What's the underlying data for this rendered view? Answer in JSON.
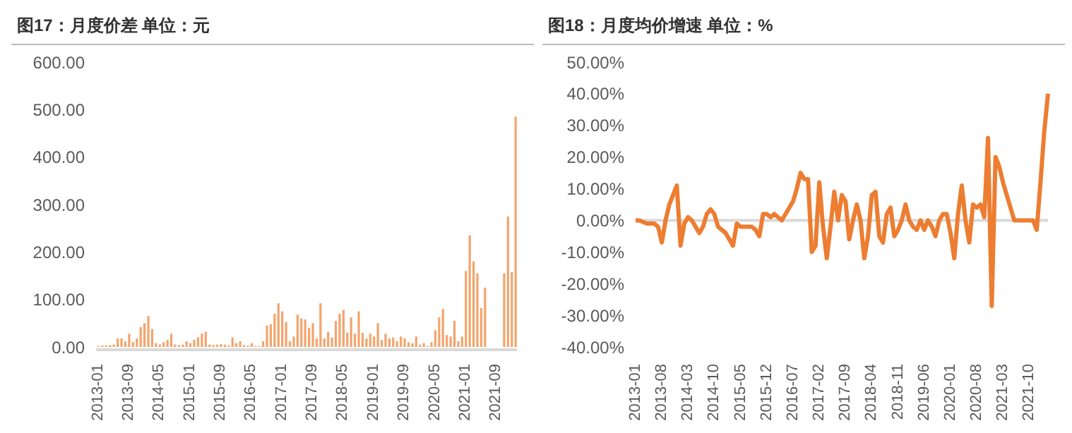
{
  "chart_data": [
    {
      "type": "bar",
      "title": "图17：月度价差 单位：元",
      "categories": [
        "2013-01",
        null,
        null,
        null,
        null,
        null,
        null,
        null,
        "2013-09",
        null,
        null,
        null,
        null,
        null,
        null,
        null,
        "2014-05",
        null,
        null,
        null,
        null,
        null,
        null,
        null,
        "2015-01",
        null,
        null,
        null,
        null,
        null,
        null,
        null,
        "2015-09",
        null,
        null,
        null,
        null,
        null,
        null,
        null,
        "2016-05",
        null,
        null,
        null,
        null,
        null,
        null,
        null,
        "2017-01",
        null,
        null,
        null,
        null,
        null,
        null,
        null,
        "2017-09",
        null,
        null,
        null,
        null,
        null,
        null,
        null,
        "2018-05",
        null,
        null,
        null,
        null,
        null,
        null,
        null,
        "2019-01",
        null,
        null,
        null,
        null,
        null,
        null,
        null,
        "2019-09",
        null,
        null,
        null,
        null,
        null,
        null,
        null,
        "2020-05",
        null,
        null,
        null,
        null,
        null,
        null,
        null,
        "2021-01",
        null,
        null,
        null,
        null,
        null,
        null,
        null,
        "2021-09",
        null,
        null,
        null,
        null,
        null
      ],
      "series": [
        {
          "color": "#f4a46c",
          "values": [
            2,
            3,
            3,
            4,
            5,
            18,
            18,
            12,
            28,
            10,
            18,
            42,
            50,
            65,
            38,
            8,
            5,
            10,
            15,
            28,
            5,
            4,
            5,
            12,
            8,
            15,
            20,
            28,
            32,
            5,
            4,
            5,
            6,
            5,
            3,
            20,
            8,
            12,
            4,
            3,
            8,
            2,
            2,
            12,
            45,
            48,
            70,
            92,
            75,
            52,
            12,
            22,
            68,
            60,
            58,
            40,
            50,
            18,
            92,
            18,
            32,
            20,
            55,
            70,
            78,
            30,
            62,
            28,
            75,
            30,
            18,
            28,
            22,
            50,
            15,
            28,
            18,
            20,
            12,
            22,
            18,
            10,
            8,
            22,
            5,
            8,
            2,
            10,
            35,
            62,
            80,
            25,
            22,
            55,
            12,
            22,
            160,
            235,
            180,
            155,
            82,
            125,
            null,
            null,
            null,
            null,
            155,
            275,
            158,
            485
          ]
        }
      ],
      "ylim": [
        0,
        600
      ],
      "yticks": [
        {
          "value": 0,
          "label": "0.00"
        },
        {
          "value": 100,
          "label": "100.00"
        },
        {
          "value": 200,
          "label": "200.00"
        },
        {
          "value": 300,
          "label": "300.00"
        },
        {
          "value": 400,
          "label": "400.00"
        },
        {
          "value": 500,
          "label": "500.00"
        },
        {
          "value": 600,
          "label": "600.00"
        }
      ]
    },
    {
      "type": "line",
      "title": "图18：月度均价增速 单位：%",
      "categories": [
        "2013-01",
        null,
        null,
        null,
        null,
        null,
        null,
        "2013-08",
        null,
        null,
        null,
        null,
        null,
        null,
        "2014-03",
        null,
        null,
        null,
        null,
        null,
        null,
        "2014-10",
        null,
        null,
        null,
        null,
        null,
        null,
        "2015-05",
        null,
        null,
        null,
        null,
        null,
        null,
        "2015-12",
        null,
        null,
        null,
        null,
        null,
        null,
        "2016-07",
        null,
        null,
        null,
        null,
        null,
        null,
        "2017-02",
        null,
        null,
        null,
        null,
        null,
        null,
        "2017-09",
        null,
        null,
        null,
        null,
        null,
        null,
        "2018-04",
        null,
        null,
        null,
        null,
        null,
        null,
        "2018-11",
        null,
        null,
        null,
        null,
        null,
        null,
        "2019-06",
        null,
        null,
        null,
        null,
        null,
        null,
        "2020-01",
        null,
        null,
        null,
        null,
        null,
        null,
        "2020-08",
        null,
        null,
        null,
        null,
        null,
        null,
        "2021-03",
        null,
        null,
        null,
        null,
        null,
        null,
        "2021-10",
        null,
        null,
        null,
        null,
        null
      ],
      "series": [
        {
          "color": "#ed7d31",
          "values": [
            0,
            0,
            -0.5,
            -1,
            -1,
            -1,
            -2,
            -7,
            0,
            5,
            8,
            11,
            -8,
            -1,
            1,
            0,
            -2,
            -4,
            -2,
            2,
            3.5,
            2,
            -2,
            -3,
            -4,
            -6,
            -8,
            -1,
            -2,
            -2,
            -2,
            -2,
            -3,
            -5,
            2,
            2,
            1,
            2,
            1,
            0,
            2,
            4,
            6,
            10,
            15,
            13,
            13,
            -10,
            -8,
            12,
            -2,
            -12,
            -2,
            9,
            0,
            8,
            6,
            -6,
            0,
            5,
            0,
            -12,
            -5,
            8,
            9,
            -5,
            -7,
            2,
            4,
            -5,
            -3,
            0,
            5,
            0,
            -2,
            -3,
            0,
            -3,
            0,
            -2,
            -5,
            0,
            2,
            2,
            -4,
            -12,
            2,
            11,
            0,
            -7,
            5,
            4,
            5,
            1,
            26,
            -27,
            20,
            17,
            12,
            8,
            4,
            0,
            0,
            0,
            0,
            0,
            0,
            -3,
            12,
            28,
            40
          ]
        }
      ],
      "marker": "none",
      "ylim": [
        -40,
        50
      ],
      "yticks": [
        {
          "value": -40,
          "label": "-40.00%"
        },
        {
          "value": -30,
          "label": "-30.00%"
        },
        {
          "value": -20,
          "label": "-20.00%"
        },
        {
          "value": -10,
          "label": "-10.00%"
        },
        {
          "value": 0,
          "label": "0.00%"
        },
        {
          "value": 10,
          "label": "10.00%"
        },
        {
          "value": 20,
          "label": "20.00%"
        },
        {
          "value": 30,
          "label": "30.00%"
        },
        {
          "value": 40,
          "label": "40.00%"
        },
        {
          "value": 50,
          "label": "50.00%"
        }
      ]
    }
  ]
}
